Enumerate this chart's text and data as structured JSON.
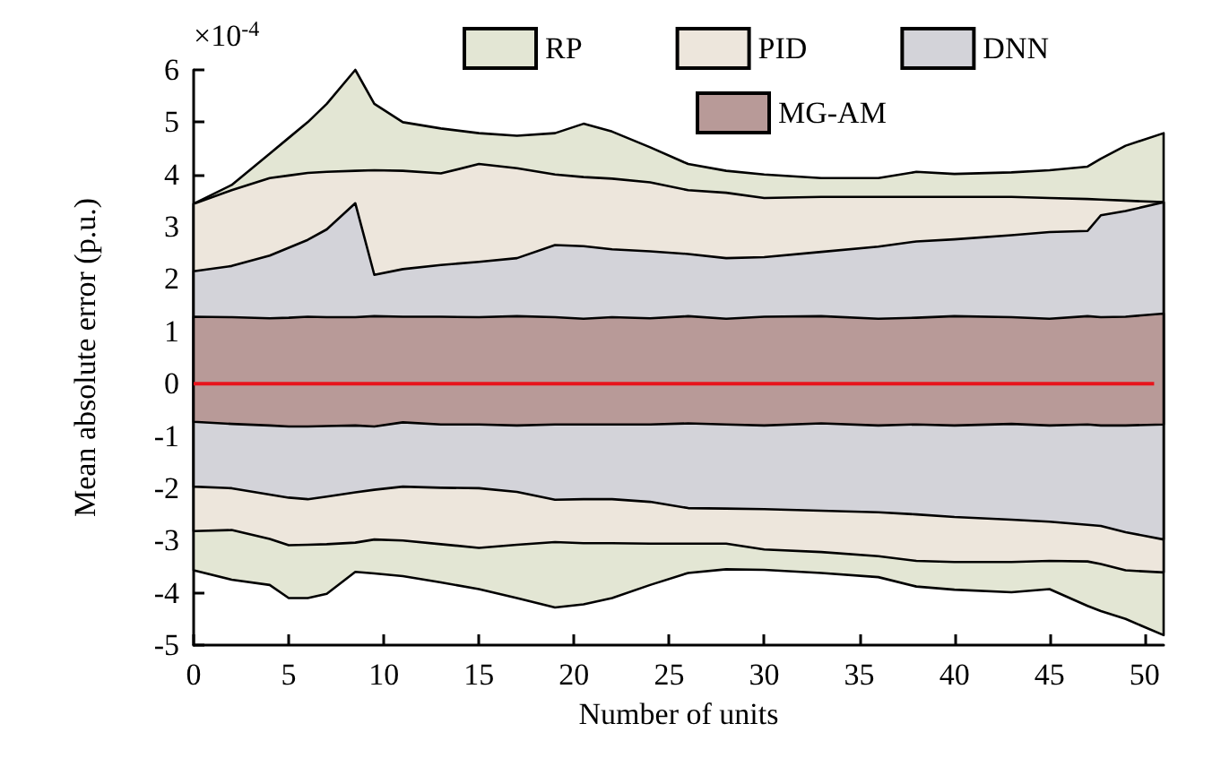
{
  "chart_data": {
    "type": "area",
    "xlabel": "Number of units",
    "ylabel": "Mean absolute error (p.u.)",
    "annotations": [
      "×10$^{-4}$"
    ],
    "x": [
      0,
      2,
      4,
      5,
      6,
      7,
      8.5,
      9.5,
      11,
      13,
      15,
      17,
      19,
      20.5,
      22,
      24,
      26,
      28,
      30,
      33,
      36,
      38,
      40,
      43,
      45,
      47,
      47.7,
      49,
      51
    ],
    "xlim": [
      0,
      51
    ],
    "xticks": [
      0,
      5,
      10,
      15,
      20,
      25,
      30,
      35,
      40,
      45,
      50
    ],
    "ylim": [
      -5,
      6
    ],
    "yticks": [
      -5,
      -4,
      -3,
      -2,
      -1,
      0,
      1,
      2,
      3,
      4,
      5,
      6
    ],
    "grid": false,
    "legend": "top",
    "series": [
      {
        "name": "RP",
        "color": "#e3e6d4",
        "values": [
          null,
          null,
          null,
          null,
          null,
          null,
          null,
          null,
          null,
          null,
          null,
          null,
          null,
          null,
          null,
          null,
          null,
          null,
          null,
          null,
          null,
          null,
          null,
          null,
          null,
          null,
          null,
          null,
          null
        ],
        "upper": [
          3.44,
          3.8,
          4.4,
          4.7,
          5.0,
          5.35,
          6.0,
          5.35,
          5.0,
          4.88,
          4.79,
          4.74,
          4.79,
          4.97,
          4.82,
          4.52,
          4.2,
          4.07,
          4.0,
          3.93,
          3.93,
          4.05,
          4.01,
          4.04,
          4.08,
          4.15,
          4.3,
          4.55,
          4.79
        ],
        "lower": [
          -3.57,
          -3.75,
          -3.85,
          -4.1,
          -4.1,
          -4.02,
          -3.6,
          -3.63,
          -3.68,
          -3.8,
          -3.93,
          -4.1,
          -4.28,
          -4.22,
          -4.1,
          -3.85,
          -3.62,
          -3.55,
          -3.56,
          -3.62,
          -3.7,
          -3.88,
          -3.94,
          -3.99,
          -3.93,
          -4.25,
          -4.35,
          -4.5,
          -4.81
        ]
      },
      {
        "name": "PID",
        "color": "#ede6dc",
        "values": [
          null,
          null,
          null,
          null,
          null,
          null,
          null,
          null,
          null,
          null,
          null,
          null,
          null,
          null,
          null,
          null,
          null,
          null,
          null,
          null,
          null,
          null,
          null,
          null,
          null,
          null,
          null,
          null,
          null
        ],
        "upper": [
          3.44,
          3.7,
          3.93,
          3.98,
          4.03,
          4.05,
          4.07,
          4.08,
          4.07,
          4.02,
          4.2,
          4.12,
          4.0,
          3.95,
          3.92,
          3.85,
          3.7,
          3.65,
          3.55,
          3.57,
          3.57,
          3.57,
          3.57,
          3.57,
          3.55,
          3.53,
          3.52,
          3.5,
          3.47
        ],
        "lower": [
          -2.82,
          -2.8,
          -2.97,
          -3.09,
          -3.08,
          -3.07,
          -3.04,
          -2.98,
          -3.0,
          -3.07,
          -3.14,
          -3.08,
          -3.03,
          -3.05,
          -3.05,
          -3.06,
          -3.06,
          -3.06,
          -3.17,
          -3.22,
          -3.3,
          -3.39,
          -3.41,
          -3.41,
          -3.39,
          -3.4,
          -3.45,
          -3.57,
          -3.61
        ]
      },
      {
        "name": "DNN",
        "color": "#d3d3d9",
        "values": [
          null,
          null,
          null,
          null,
          null,
          null,
          null,
          null,
          null,
          null,
          null,
          null,
          null,
          null,
          null,
          null,
          null,
          null,
          null,
          null,
          null,
          null,
          null,
          null,
          null,
          null,
          null,
          null,
          null
        ],
        "upper": [
          2.15,
          2.25,
          2.45,
          2.6,
          2.75,
          2.95,
          3.45,
          2.08,
          2.19,
          2.27,
          2.33,
          2.4,
          2.65,
          2.63,
          2.57,
          2.53,
          2.48,
          2.4,
          2.42,
          2.52,
          2.62,
          2.72,
          2.76,
          2.84,
          2.9,
          2.92,
          3.22,
          3.3,
          3.47
        ],
        "lower": [
          -1.97,
          -2.0,
          -2.12,
          -2.18,
          -2.21,
          -2.16,
          -2.08,
          -2.03,
          -1.97,
          -1.99,
          -2.0,
          -2.07,
          -2.22,
          -2.21,
          -2.21,
          -2.26,
          -2.38,
          -2.39,
          -2.4,
          -2.43,
          -2.46,
          -2.5,
          -2.55,
          -2.6,
          -2.64,
          -2.7,
          -2.72,
          -2.84,
          -2.98
        ]
      },
      {
        "name": "MG-AM",
        "color": "#b89a98",
        "values": [
          null,
          null,
          null,
          null,
          null,
          null,
          null,
          null,
          null,
          null,
          null,
          null,
          null,
          null,
          null,
          null,
          null,
          null,
          null,
          null,
          null,
          null,
          null,
          null,
          null,
          null,
          null,
          null,
          null
        ],
        "upper": [
          1.28,
          1.27,
          1.25,
          1.26,
          1.28,
          1.27,
          1.27,
          1.29,
          1.28,
          1.28,
          1.27,
          1.29,
          1.27,
          1.24,
          1.27,
          1.25,
          1.29,
          1.24,
          1.28,
          1.29,
          1.24,
          1.26,
          1.29,
          1.27,
          1.24,
          1.29,
          1.27,
          1.28,
          1.34
        ],
        "lower": [
          -0.73,
          -0.77,
          -0.8,
          -0.82,
          -0.82,
          -0.81,
          -0.8,
          -0.82,
          -0.74,
          -0.78,
          -0.78,
          -0.8,
          -0.78,
          -0.78,
          -0.78,
          -0.78,
          -0.76,
          -0.78,
          -0.8,
          -0.76,
          -0.8,
          -0.78,
          -0.8,
          -0.77,
          -0.8,
          -0.78,
          -0.8,
          -0.8,
          -0.78
        ]
      },
      {
        "type": "line",
        "color": "#e8141c",
        "x": [
          0,
          50.5
        ],
        "values": [
          0,
          0
        ]
      }
    ]
  }
}
